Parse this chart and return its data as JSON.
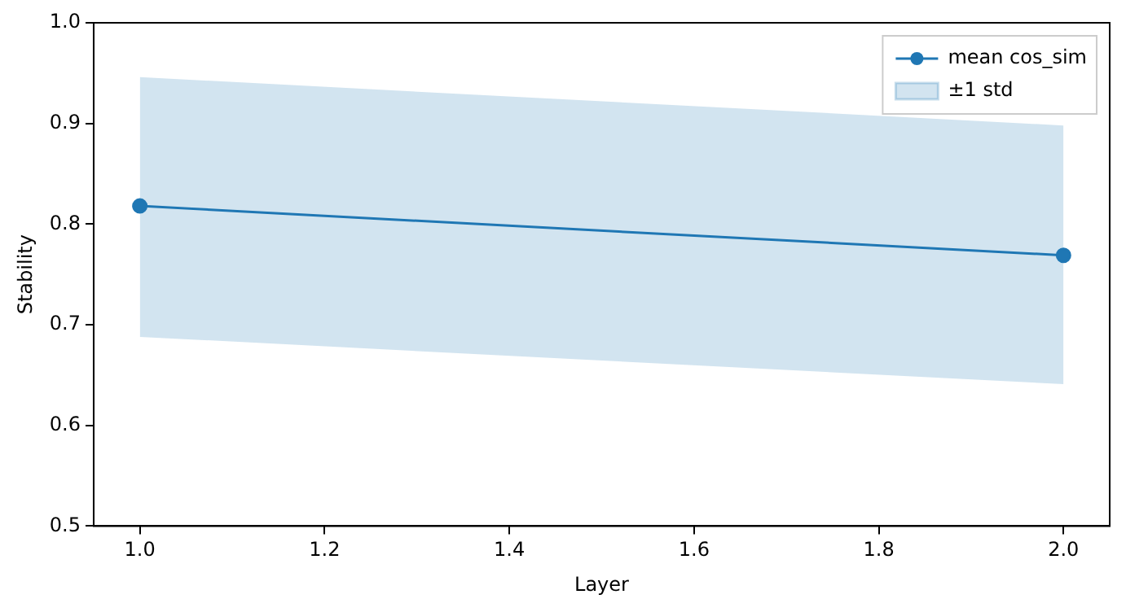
{
  "chart_data": {
    "type": "line",
    "xlabel": "Layer",
    "ylabel": "Stability",
    "x": [
      1.0,
      2.0
    ],
    "series": [
      {
        "name": "mean cos_sim",
        "color": "#1f77b4",
        "values": [
          0.818,
          0.769
        ]
      },
      {
        "name": "±1 std",
        "type": "area",
        "color": "#1f77b4",
        "values": [
          null,
          null
        ],
        "lower": [
          0.688,
          0.641
        ],
        "upper": [
          0.946,
          0.898
        ]
      }
    ],
    "xlim": [
      0.95,
      2.05
    ],
    "xticks": [
      {
        "value": 1.0,
        "label": "1.0"
      },
      {
        "value": 1.2,
        "label": "1.2"
      },
      {
        "value": 1.4,
        "label": "1.4"
      },
      {
        "value": 1.6,
        "label": "1.6"
      },
      {
        "value": 1.8,
        "label": "1.8"
      },
      {
        "value": 2.0,
        "label": "2.0"
      }
    ],
    "ylim": [
      0.5,
      1.0
    ],
    "yticks": [
      {
        "value": 0.5,
        "label": "0.5"
      },
      {
        "value": 0.6,
        "label": "0.6"
      },
      {
        "value": 0.7,
        "label": "0.7"
      },
      {
        "value": 0.8,
        "label": "0.8"
      },
      {
        "value": 0.9,
        "label": "0.9"
      },
      {
        "value": 1.0,
        "label": "1.0"
      }
    ],
    "grid": false,
    "legend": "top right",
    "marker": "circle",
    "line_style": "solid"
  }
}
